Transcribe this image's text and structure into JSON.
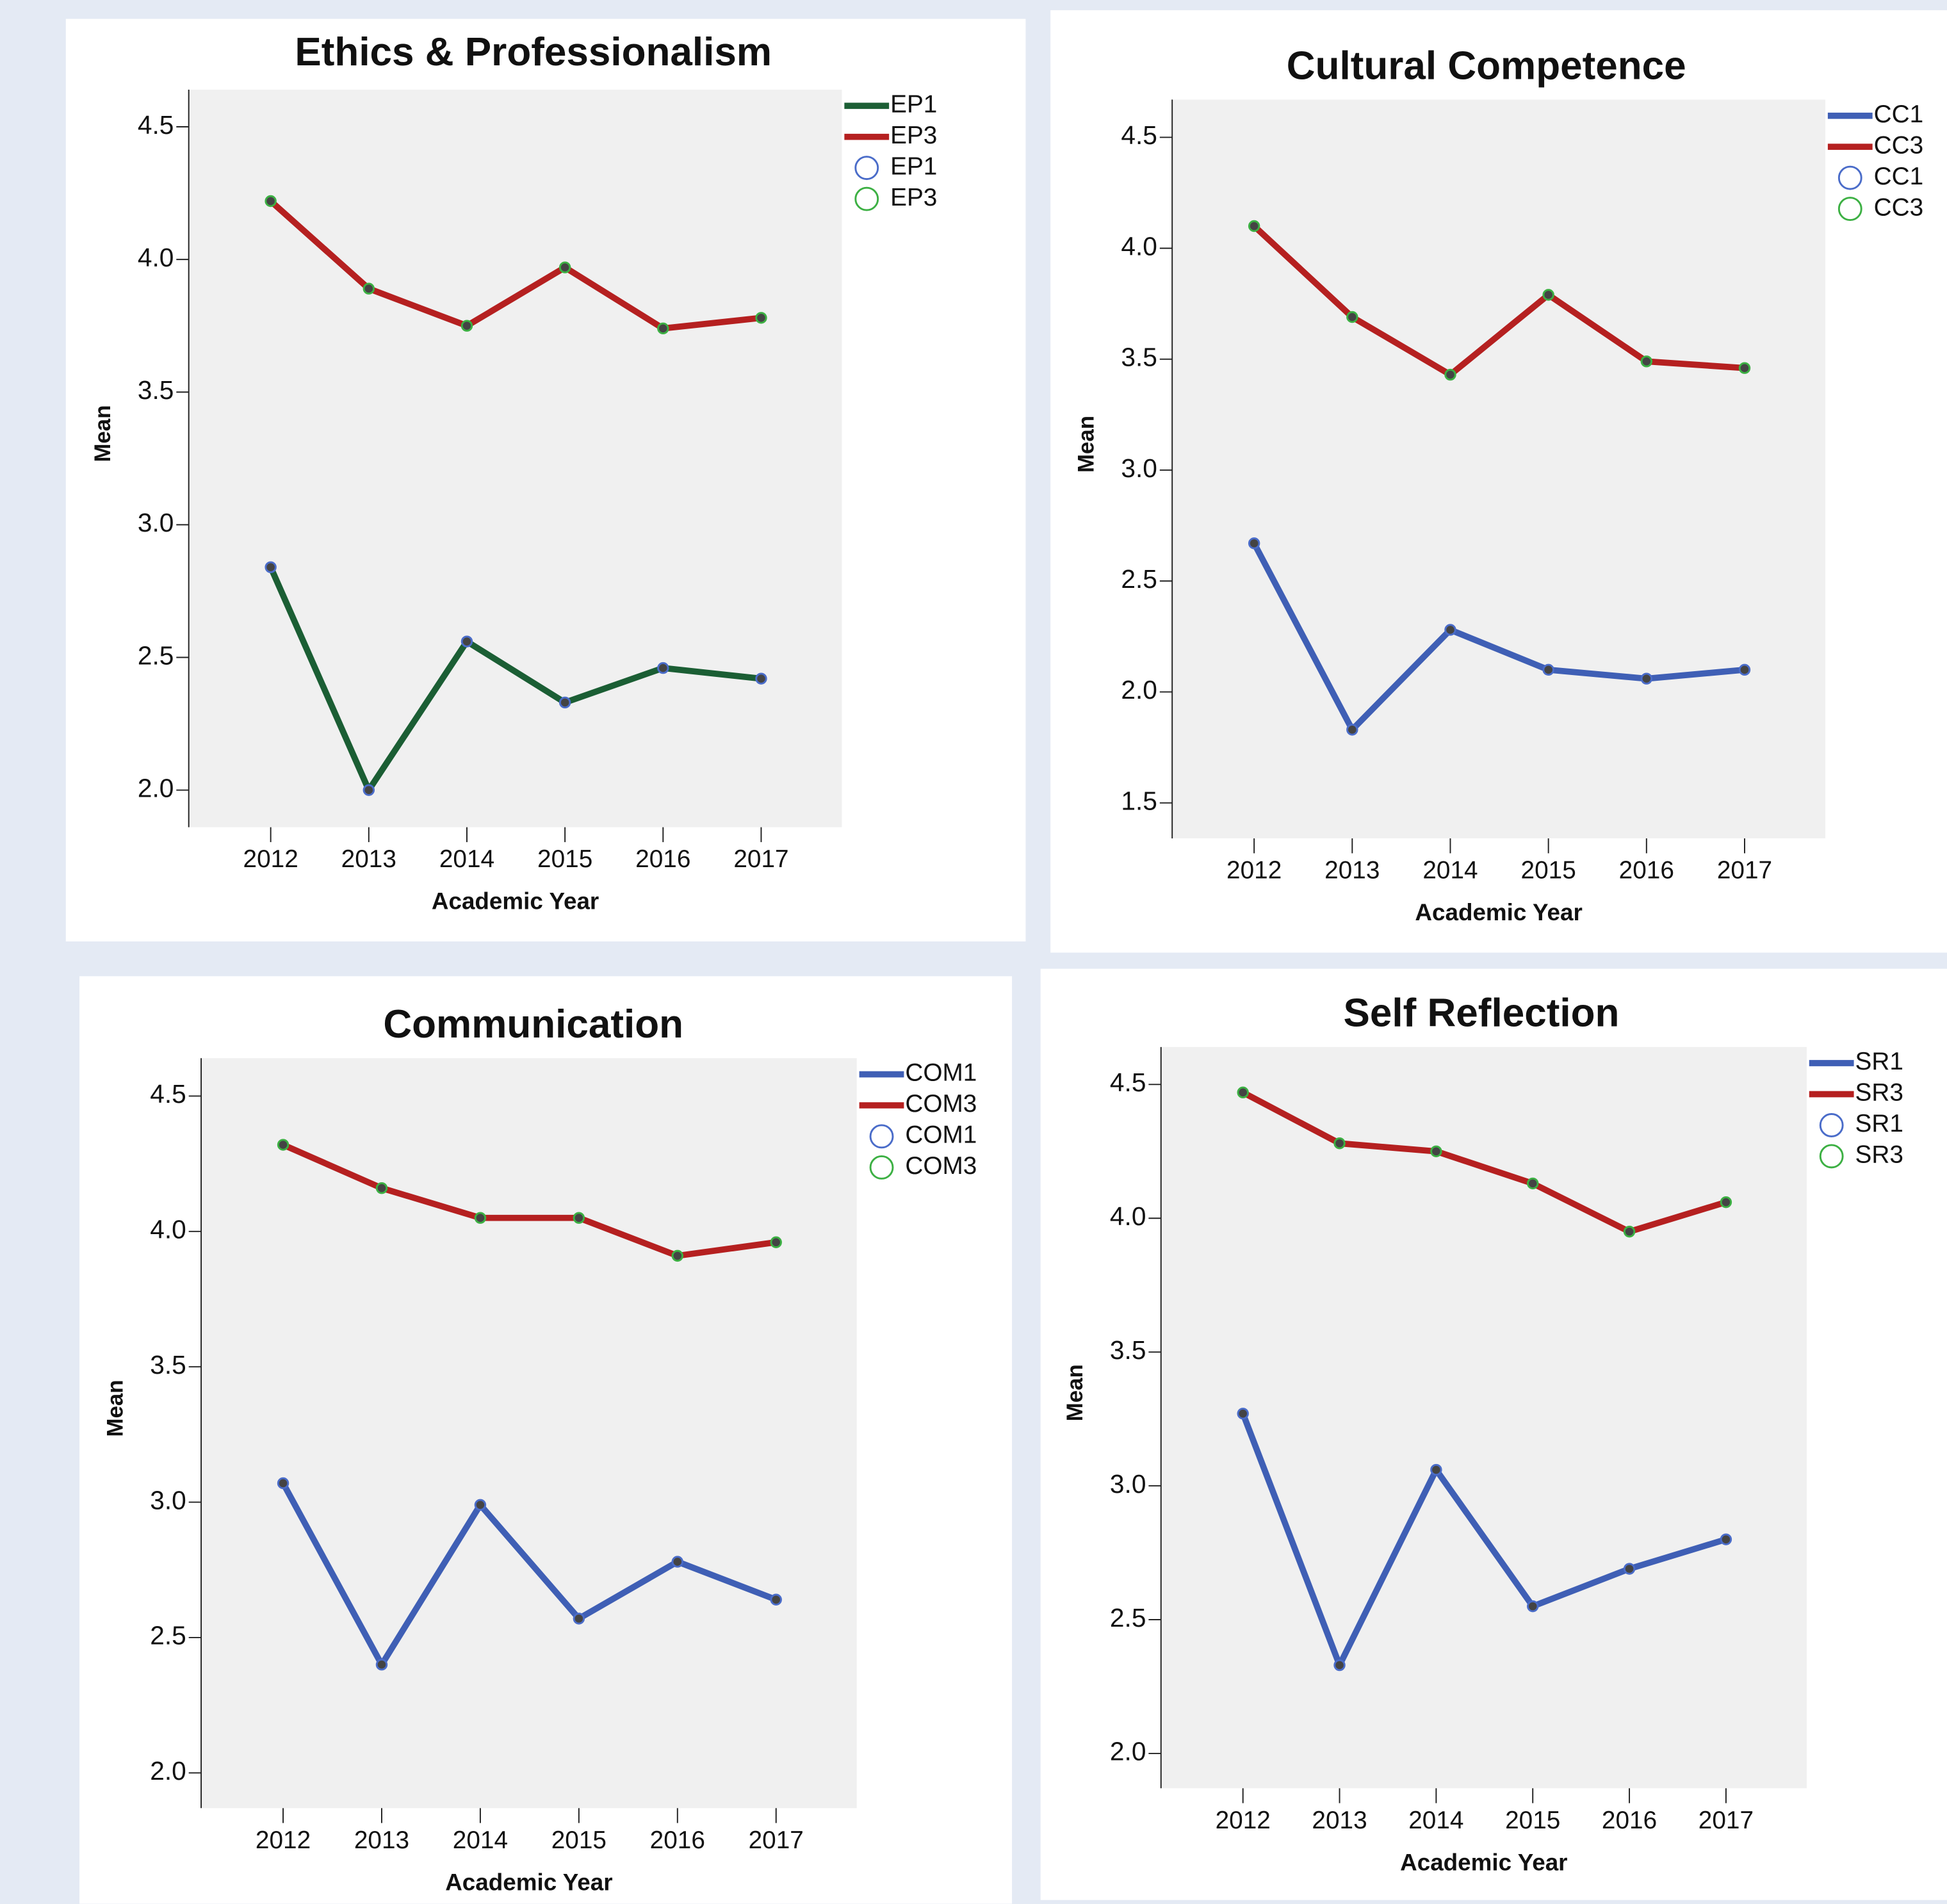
{
  "chart_data": [
    {
      "type": "line",
      "title": "Ethics & Professionalism",
      "x_label": "Academic Year",
      "y_label": "Mean",
      "categories": [
        "2012",
        "2013",
        "2014",
        "2015",
        "2016",
        "2017"
      ],
      "series": [
        {
          "name": "EP1",
          "color": "#1b5e34",
          "marker_color": "#4a6cc9",
          "values": [
            2.84,
            2.0,
            2.56,
            2.33,
            2.46,
            2.42
          ]
        },
        {
          "name": "EP3",
          "color": "#b52020",
          "marker_color": "#3cb043",
          "values": [
            4.22,
            3.89,
            3.75,
            3.97,
            3.74,
            3.78
          ]
        }
      ],
      "ylim": [
        1.86,
        4.64
      ],
      "yticks": [
        {
          "value": 2,
          "label": "2.0"
        },
        2.5,
        {
          "value": 3,
          "label": "3.0"
        },
        3.5,
        {
          "value": 4,
          "label": "4.0"
        },
        4.5
      ]
    },
    {
      "type": "line",
      "title": "Cultural Competence",
      "x_label": "Academic Year",
      "y_label": "Mean",
      "categories": [
        "2012",
        "2013",
        "2014",
        "2015",
        "2016",
        "2017"
      ],
      "series": [
        {
          "name": "CC1",
          "color": "#3f5fb5",
          "marker_color": "#4a6cc9",
          "values": [
            2.67,
            1.83,
            2.28,
            2.1,
            2.06,
            2.1
          ]
        },
        {
          "name": "CC3",
          "color": "#b52020",
          "marker_color": "#3cb043",
          "values": [
            4.1,
            3.69,
            3.43,
            3.79,
            3.49,
            3.46
          ]
        }
      ],
      "ylim": [
        1.34,
        4.67
      ],
      "yticks": [
        1.5,
        {
          "value": 2,
          "label": "2.0"
        },
        2.5,
        {
          "value": 3,
          "label": "3.0"
        },
        3.5,
        {
          "value": 4,
          "label": "4.0"
        },
        4.5
      ]
    },
    {
      "type": "line",
      "title": "Communication",
      "x_label": "Academic Year",
      "y_label": "Mean",
      "categories": [
        "2012",
        "2013",
        "2014",
        "2015",
        "2016",
        "2017"
      ],
      "series": [
        {
          "name": "COM1",
          "color": "#3f5fb5",
          "marker_color": "#4a6cc9",
          "values": [
            3.07,
            2.4,
            2.99,
            2.57,
            2.78,
            2.64
          ]
        },
        {
          "name": "COM3",
          "color": "#b52020",
          "marker_color": "#3cb043",
          "values": [
            4.32,
            4.16,
            4.05,
            4.05,
            3.91,
            3.96
          ]
        }
      ],
      "ylim": [
        1.87,
        4.64
      ],
      "yticks": [
        {
          "value": 2,
          "label": "2.0"
        },
        2.5,
        {
          "value": 3,
          "label": "3.0"
        },
        3.5,
        {
          "value": 4,
          "label": "4.0"
        },
        4.5
      ]
    },
    {
      "type": "line",
      "title": "Self Reflection",
      "x_label": "Academic Year",
      "y_label": "Mean",
      "categories": [
        "2012",
        "2013",
        "2014",
        "2015",
        "2016",
        "2017"
      ],
      "series": [
        {
          "name": "SR1",
          "color": "#3f5fb5",
          "marker_color": "#4a6cc9",
          "values": [
            3.27,
            2.33,
            3.06,
            2.55,
            2.69,
            2.8
          ]
        },
        {
          "name": "SR3",
          "color": "#b52020",
          "marker_color": "#3cb043",
          "values": [
            4.47,
            4.28,
            4.25,
            4.13,
            3.95,
            4.06
          ]
        }
      ],
      "ylim": [
        1.87,
        4.64
      ],
      "yticks": [
        {
          "value": 2,
          "label": "2.0"
        },
        2.5,
        {
          "value": 3,
          "label": "3.0"
        },
        3.5,
        {
          "value": 4,
          "label": "4.0"
        },
        4.5
      ]
    }
  ]
}
